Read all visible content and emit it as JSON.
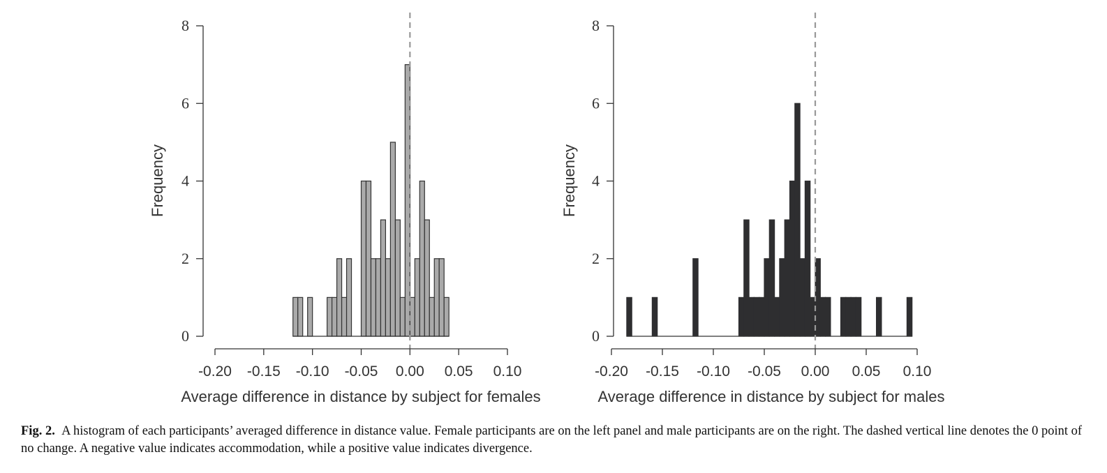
{
  "chart_data": [
    {
      "type": "bar",
      "panel": "left",
      "xlabel": "Average difference in distance by subject for females",
      "ylabel": "Frequency",
      "xlim": [
        -0.2,
        0.1
      ],
      "ylim": [
        0,
        8
      ],
      "xticks": [
        "-0.20",
        "-0.15",
        "-0.10",
        "-0.05",
        "0.00",
        "0.05",
        "0.10"
      ],
      "yticks": [
        "0",
        "2",
        "4",
        "6",
        "8"
      ],
      "bin_width": 0.005,
      "bar_color": "#aaaaaa",
      "edge_color": "#333333",
      "reference_line_x": 0.0,
      "bins": [
        {
          "x": -0.12,
          "count": 1
        },
        {
          "x": -0.115,
          "count": 1
        },
        {
          "x": -0.105,
          "count": 1
        },
        {
          "x": -0.085,
          "count": 1
        },
        {
          "x": -0.08,
          "count": 1
        },
        {
          "x": -0.075,
          "count": 2
        },
        {
          "x": -0.07,
          "count": 1
        },
        {
          "x": -0.065,
          "count": 2
        },
        {
          "x": -0.05,
          "count": 4
        },
        {
          "x": -0.045,
          "count": 4
        },
        {
          "x": -0.04,
          "count": 2
        },
        {
          "x": -0.035,
          "count": 2
        },
        {
          "x": -0.03,
          "count": 3
        },
        {
          "x": -0.025,
          "count": 2
        },
        {
          "x": -0.02,
          "count": 5
        },
        {
          "x": -0.015,
          "count": 3
        },
        {
          "x": -0.01,
          "count": 1
        },
        {
          "x": -0.005,
          "count": 7
        },
        {
          "x": 0.0,
          "count": 1
        },
        {
          "x": 0.005,
          "count": 2
        },
        {
          "x": 0.01,
          "count": 4
        },
        {
          "x": 0.015,
          "count": 3
        },
        {
          "x": 0.02,
          "count": 1
        },
        {
          "x": 0.025,
          "count": 2
        },
        {
          "x": 0.03,
          "count": 2
        },
        {
          "x": 0.035,
          "count": 1
        }
      ]
    },
    {
      "type": "bar",
      "panel": "right",
      "xlabel": "Average difference in distance by subject for males",
      "ylabel": "Frequency",
      "xlim": [
        -0.2,
        0.1
      ],
      "ylim": [
        0,
        8
      ],
      "xticks": [
        "-0.20",
        "-0.15",
        "-0.10",
        "-0.05",
        "0.00",
        "0.05",
        "0.10"
      ],
      "yticks": [
        "0",
        "2",
        "4",
        "6",
        "8"
      ],
      "bin_width": 0.005,
      "bar_color": "#2e2e30",
      "edge_color": "#2e2e30",
      "reference_line_x": 0.0,
      "bins": [
        {
          "x": -0.185,
          "count": 1
        },
        {
          "x": -0.16,
          "count": 1
        },
        {
          "x": -0.12,
          "count": 2
        },
        {
          "x": -0.075,
          "count": 1
        },
        {
          "x": -0.07,
          "count": 3
        },
        {
          "x": -0.065,
          "count": 1
        },
        {
          "x": -0.06,
          "count": 1
        },
        {
          "x": -0.055,
          "count": 1
        },
        {
          "x": -0.05,
          "count": 2
        },
        {
          "x": -0.045,
          "count": 3
        },
        {
          "x": -0.04,
          "count": 1
        },
        {
          "x": -0.035,
          "count": 2
        },
        {
          "x": -0.03,
          "count": 3
        },
        {
          "x": -0.025,
          "count": 4
        },
        {
          "x": -0.02,
          "count": 6
        },
        {
          "x": -0.015,
          "count": 2
        },
        {
          "x": -0.01,
          "count": 4
        },
        {
          "x": -0.005,
          "count": 1
        },
        {
          "x": 0.0,
          "count": 2
        },
        {
          "x": 0.005,
          "count": 1
        },
        {
          "x": 0.01,
          "count": 1
        },
        {
          "x": 0.025,
          "count": 1
        },
        {
          "x": 0.03,
          "count": 1
        },
        {
          "x": 0.035,
          "count": 1
        },
        {
          "x": 0.04,
          "count": 1
        },
        {
          "x": 0.06,
          "count": 1
        },
        {
          "x": 0.09,
          "count": 1
        }
      ]
    }
  ],
  "caption": {
    "label": "Fig. 2.",
    "text": "A histogram of each participants’ averaged difference in distance value. Female participants are on the left panel and male participants are on the right. The dashed vertical line denotes the 0 point of no change. A negative value indicates accommodation, while a positive value indicates divergence."
  }
}
